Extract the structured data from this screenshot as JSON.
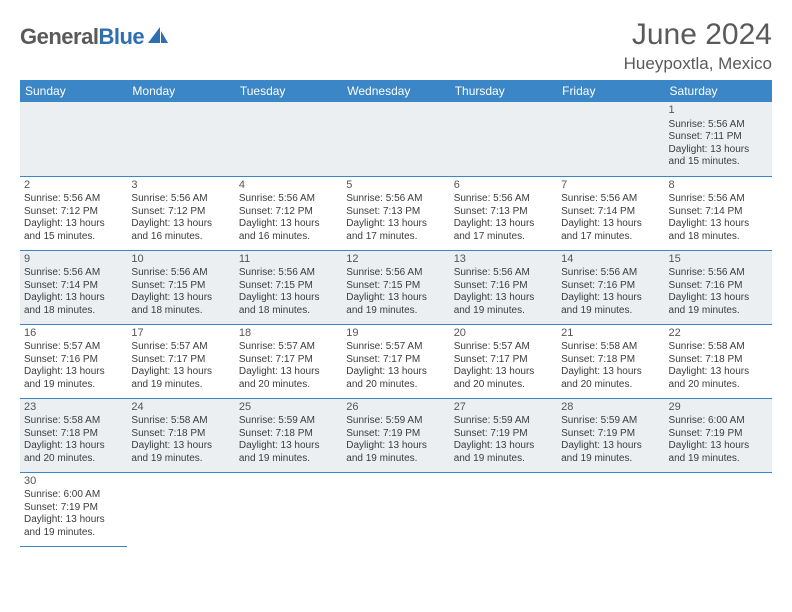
{
  "brand": {
    "name_gray": "General",
    "name_blue": "Blue"
  },
  "title": "June 2024",
  "location": "Hueypoxtla, Mexico",
  "colors": {
    "header_bg": "#3b86c6",
    "header_text": "#ffffff",
    "alt_row_bg": "#eceff1",
    "page_bg": "#ffffff",
    "text": "#333333",
    "brand_gray": "#5a5a5a",
    "brand_blue": "#2d6fb0",
    "cell_border": "#3b86c6"
  },
  "weekdays": [
    "Sunday",
    "Monday",
    "Tuesday",
    "Wednesday",
    "Thursday",
    "Friday",
    "Saturday"
  ],
  "weeks": [
    [
      null,
      null,
      null,
      null,
      null,
      null,
      {
        "n": "1",
        "sr": "Sunrise: 5:56 AM",
        "ss": "Sunset: 7:11 PM",
        "d1": "Daylight: 13 hours",
        "d2": "and 15 minutes."
      }
    ],
    [
      {
        "n": "2",
        "sr": "Sunrise: 5:56 AM",
        "ss": "Sunset: 7:12 PM",
        "d1": "Daylight: 13 hours",
        "d2": "and 15 minutes."
      },
      {
        "n": "3",
        "sr": "Sunrise: 5:56 AM",
        "ss": "Sunset: 7:12 PM",
        "d1": "Daylight: 13 hours",
        "d2": "and 16 minutes."
      },
      {
        "n": "4",
        "sr": "Sunrise: 5:56 AM",
        "ss": "Sunset: 7:12 PM",
        "d1": "Daylight: 13 hours",
        "d2": "and 16 minutes."
      },
      {
        "n": "5",
        "sr": "Sunrise: 5:56 AM",
        "ss": "Sunset: 7:13 PM",
        "d1": "Daylight: 13 hours",
        "d2": "and 17 minutes."
      },
      {
        "n": "6",
        "sr": "Sunrise: 5:56 AM",
        "ss": "Sunset: 7:13 PM",
        "d1": "Daylight: 13 hours",
        "d2": "and 17 minutes."
      },
      {
        "n": "7",
        "sr": "Sunrise: 5:56 AM",
        "ss": "Sunset: 7:14 PM",
        "d1": "Daylight: 13 hours",
        "d2": "and 17 minutes."
      },
      {
        "n": "8",
        "sr": "Sunrise: 5:56 AM",
        "ss": "Sunset: 7:14 PM",
        "d1": "Daylight: 13 hours",
        "d2": "and 18 minutes."
      }
    ],
    [
      {
        "n": "9",
        "sr": "Sunrise: 5:56 AM",
        "ss": "Sunset: 7:14 PM",
        "d1": "Daylight: 13 hours",
        "d2": "and 18 minutes."
      },
      {
        "n": "10",
        "sr": "Sunrise: 5:56 AM",
        "ss": "Sunset: 7:15 PM",
        "d1": "Daylight: 13 hours",
        "d2": "and 18 minutes."
      },
      {
        "n": "11",
        "sr": "Sunrise: 5:56 AM",
        "ss": "Sunset: 7:15 PM",
        "d1": "Daylight: 13 hours",
        "d2": "and 18 minutes."
      },
      {
        "n": "12",
        "sr": "Sunrise: 5:56 AM",
        "ss": "Sunset: 7:15 PM",
        "d1": "Daylight: 13 hours",
        "d2": "and 19 minutes."
      },
      {
        "n": "13",
        "sr": "Sunrise: 5:56 AM",
        "ss": "Sunset: 7:16 PM",
        "d1": "Daylight: 13 hours",
        "d2": "and 19 minutes."
      },
      {
        "n": "14",
        "sr": "Sunrise: 5:56 AM",
        "ss": "Sunset: 7:16 PM",
        "d1": "Daylight: 13 hours",
        "d2": "and 19 minutes."
      },
      {
        "n": "15",
        "sr": "Sunrise: 5:56 AM",
        "ss": "Sunset: 7:16 PM",
        "d1": "Daylight: 13 hours",
        "d2": "and 19 minutes."
      }
    ],
    [
      {
        "n": "16",
        "sr": "Sunrise: 5:57 AM",
        "ss": "Sunset: 7:16 PM",
        "d1": "Daylight: 13 hours",
        "d2": "and 19 minutes."
      },
      {
        "n": "17",
        "sr": "Sunrise: 5:57 AM",
        "ss": "Sunset: 7:17 PM",
        "d1": "Daylight: 13 hours",
        "d2": "and 19 minutes."
      },
      {
        "n": "18",
        "sr": "Sunrise: 5:57 AM",
        "ss": "Sunset: 7:17 PM",
        "d1": "Daylight: 13 hours",
        "d2": "and 20 minutes."
      },
      {
        "n": "19",
        "sr": "Sunrise: 5:57 AM",
        "ss": "Sunset: 7:17 PM",
        "d1": "Daylight: 13 hours",
        "d2": "and 20 minutes."
      },
      {
        "n": "20",
        "sr": "Sunrise: 5:57 AM",
        "ss": "Sunset: 7:17 PM",
        "d1": "Daylight: 13 hours",
        "d2": "and 20 minutes."
      },
      {
        "n": "21",
        "sr": "Sunrise: 5:58 AM",
        "ss": "Sunset: 7:18 PM",
        "d1": "Daylight: 13 hours",
        "d2": "and 20 minutes."
      },
      {
        "n": "22",
        "sr": "Sunrise: 5:58 AM",
        "ss": "Sunset: 7:18 PM",
        "d1": "Daylight: 13 hours",
        "d2": "and 20 minutes."
      }
    ],
    [
      {
        "n": "23",
        "sr": "Sunrise: 5:58 AM",
        "ss": "Sunset: 7:18 PM",
        "d1": "Daylight: 13 hours",
        "d2": "and 20 minutes."
      },
      {
        "n": "24",
        "sr": "Sunrise: 5:58 AM",
        "ss": "Sunset: 7:18 PM",
        "d1": "Daylight: 13 hours",
        "d2": "and 19 minutes."
      },
      {
        "n": "25",
        "sr": "Sunrise: 5:59 AM",
        "ss": "Sunset: 7:18 PM",
        "d1": "Daylight: 13 hours",
        "d2": "and 19 minutes."
      },
      {
        "n": "26",
        "sr": "Sunrise: 5:59 AM",
        "ss": "Sunset: 7:19 PM",
        "d1": "Daylight: 13 hours",
        "d2": "and 19 minutes."
      },
      {
        "n": "27",
        "sr": "Sunrise: 5:59 AM",
        "ss": "Sunset: 7:19 PM",
        "d1": "Daylight: 13 hours",
        "d2": "and 19 minutes."
      },
      {
        "n": "28",
        "sr": "Sunrise: 5:59 AM",
        "ss": "Sunset: 7:19 PM",
        "d1": "Daylight: 13 hours",
        "d2": "and 19 minutes."
      },
      {
        "n": "29",
        "sr": "Sunrise: 6:00 AM",
        "ss": "Sunset: 7:19 PM",
        "d1": "Daylight: 13 hours",
        "d2": "and 19 minutes."
      }
    ],
    [
      {
        "n": "30",
        "sr": "Sunrise: 6:00 AM",
        "ss": "Sunset: 7:19 PM",
        "d1": "Daylight: 13 hours",
        "d2": "and 19 minutes."
      },
      null,
      null,
      null,
      null,
      null,
      null
    ]
  ]
}
